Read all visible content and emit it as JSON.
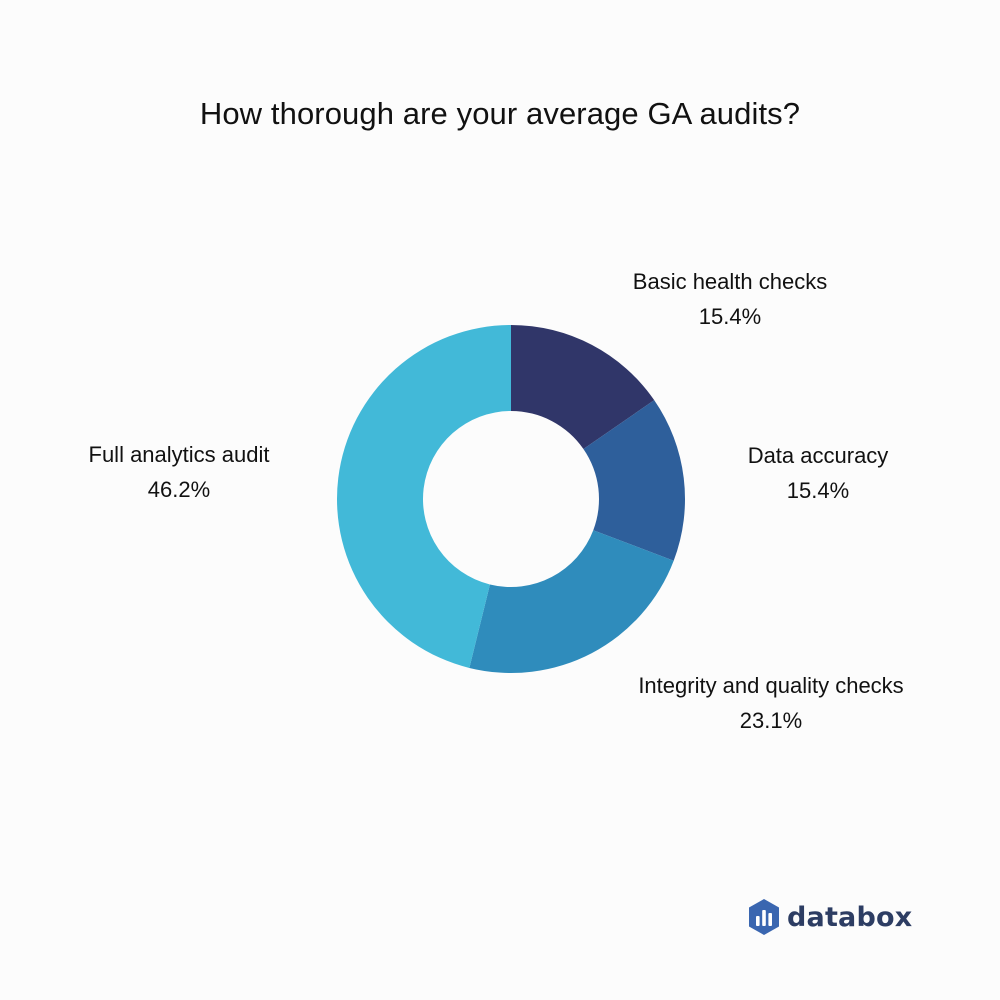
{
  "chart_data": {
    "type": "pie",
    "donut": true,
    "title": "How thorough are your average GA audits?",
    "slices": [
      {
        "label": "Basic health checks",
        "value": 15.4,
        "display": "15.4%",
        "color": "#303669"
      },
      {
        "label": "Data accuracy",
        "value": 15.4,
        "display": "15.4%",
        "color": "#2e5f9b"
      },
      {
        "label": "Integrity and quality checks",
        "value": 23.1,
        "display": "23.1%",
        "color": "#2f8cbc"
      },
      {
        "label": "Full analytics audit",
        "value": 46.2,
        "display": "46.2%",
        "color": "#42b9d8"
      }
    ],
    "legend": "none",
    "labels": "outside"
  },
  "brand": {
    "text": "databox",
    "icon": "databox-logo-icon",
    "color": "#2d3d63",
    "icon_color": "#3a66b0"
  }
}
